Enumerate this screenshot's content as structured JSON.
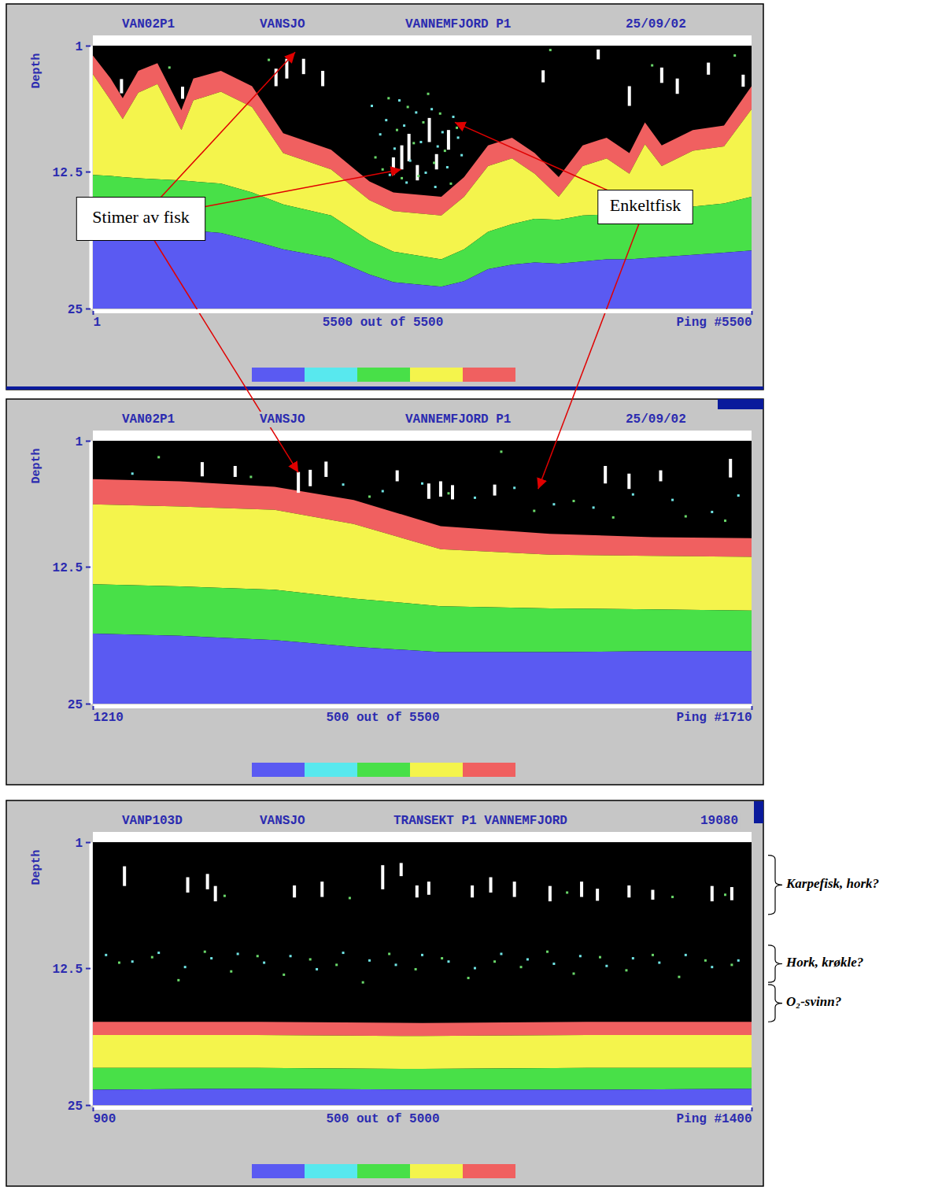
{
  "chart_data": [
    {
      "type": "area",
      "header": [
        "VAN02P1",
        "VANSJO",
        "VANNEMFJORD P1",
        "25/09/02"
      ],
      "ylabel": "Depth",
      "xlabel": "5500 out of 5500",
      "xlim": [
        1,
        5500
      ],
      "xticks": [
        1,
        {
          "value": 5500,
          "label": "Ping #5500"
        }
      ],
      "ylim": [
        1,
        25
      ],
      "yticks": [
        1,
        12.5,
        25
      ],
      "colors": [
        "#5a5af2",
        "#58e8ee",
        "#48e048",
        "#f4f44c",
        "#f06060"
      ],
      "x": [
        1,
        150,
        250,
        380,
        540,
        740,
        840,
        1070,
        1330,
        1590,
        1990,
        2310,
        2510,
        2910,
        3100,
        3300,
        3500,
        3690,
        3890,
        4090,
        4290,
        4480,
        4610,
        4750,
        5010,
        5270,
        5500
      ],
      "series": [
        {
          "type": "area",
          "color": "#f06060",
          "values": [
            1.9,
            4.0,
            5.8,
            3.3,
            2.6,
            6.9,
            4.0,
            3.3,
            4.7,
            9.0,
            10.5,
            13.4,
            14.4,
            14.8,
            13.0,
            10.1,
            9.4,
            10.8,
            13.0,
            10.1,
            9.4,
            10.8,
            8.0,
            10.1,
            8.7,
            8.3,
            4.7
          ]
        },
        {
          "type": "area",
          "color": "#f4f44c",
          "values": [
            3.6,
            6.0,
            7.7,
            5.3,
            4.5,
            8.7,
            6.0,
            5.2,
            6.6,
            10.8,
            12.3,
            15.1,
            16.1,
            16.5,
            14.8,
            12.0,
            11.3,
            12.7,
            14.8,
            12.0,
            11.3,
            12.7,
            10.0,
            12.0,
            10.6,
            10.2,
            6.8
          ]
        },
        {
          "type": "area",
          "color": "#48e048",
          "values": [
            12.8,
            12.9,
            13.0,
            13.1,
            13.2,
            13.3,
            13.4,
            13.6,
            14.4,
            15.5,
            16.5,
            18.8,
            19.8,
            20.5,
            19.6,
            18.0,
            17.3,
            16.8,
            16.9,
            16.5,
            16.4,
            16.5,
            16.3,
            16.0,
            15.7,
            15.4,
            14.8
          ]
        },
        {
          "type": "area",
          "color": "#5a5af2",
          "values": [
            17.3,
            17.4,
            17.5,
            17.6,
            17.7,
            17.8,
            17.9,
            18.1,
            18.8,
            19.6,
            20.4,
            21.9,
            22.6,
            23.0,
            22.5,
            21.4,
            21.0,
            20.8,
            20.9,
            20.7,
            20.5,
            20.5,
            20.4,
            20.3,
            20.1,
            19.9,
            19.7
          ]
        },
        {
          "type": "bar",
          "color": "#ffffff",
          "x": [
            240,
            750,
            1530,
            1620,
            1760,
            1920,
            2510,
            2580,
            2640,
            2710,
            2810,
            2870,
            2970,
            3760,
            4220,
            4480,
            4750,
            4880,
            5140,
            5430
          ],
          "values": [
            4.7,
            5.3,
            3.9,
            3.1,
            2.9,
            4.0,
            12.0,
            11.2,
            10.3,
            12.6,
            8.7,
            11.6,
            9.6,
            3.8,
            1.8,
            5.6,
            3.7,
            4.7,
            3.1,
            4.2
          ],
          "heights": [
            1.3,
            1.1,
            1.6,
            1.8,
            1.4,
            1.4,
            1.6,
            2.2,
            2.5,
            1.4,
            2.2,
            1.4,
            1.8,
            1.1,
            0.9,
            1.8,
            1.4,
            1.4,
            1.1,
            1.1
          ]
        },
        {
          "type": "scatter",
          "color": "#70e4e4",
          "x": [
            2330,
            2400,
            2450,
            2520,
            2560,
            2600,
            2650,
            2700,
            2740,
            2780,
            2830,
            2880,
            2920,
            2960,
            3010,
            3050,
            2480,
            2620,
            2860,
            3080
          ],
          "values": [
            6.5,
            9.1,
            7.8,
            10.4,
            6.0,
            8.3,
            11.5,
            7.1,
            9.8,
            12.6,
            6.8,
            10.2,
            8.9,
            12.1,
            7.5,
            9.4,
            12.8,
            13.5,
            13.9,
            11.0
          ]
        },
        {
          "type": "scatter",
          "color": "#6ad86a",
          "x": [
            2360,
            2420,
            2470,
            2540,
            2580,
            2630,
            2680,
            2720,
            2760,
            2800,
            2850,
            2900,
            2940,
            2990,
            3040,
            1470,
            3820,
            4670,
            5360,
            640
          ],
          "values": [
            11.2,
            12.3,
            5.8,
            8.7,
            13.1,
            6.6,
            9.9,
            12.9,
            8.0,
            5.4,
            11.7,
            7.2,
            10.6,
            13.6,
            8.5,
            2.3,
            1.4,
            2.8,
            1.9,
            3.0
          ]
        }
      ]
    },
    {
      "type": "area",
      "header": [
        "VAN02P1",
        "VANSJO",
        "VANNEMFJORD P1",
        "25/09/02"
      ],
      "ylabel": "Depth",
      "xlabel": "500 out of 5500",
      "xlim": [
        1210,
        1710
      ],
      "xticks": [
        1210,
        {
          "value": 1710,
          "label": "Ping #1710"
        }
      ],
      "ylim": [
        1,
        25
      ],
      "yticks": [
        1,
        12.5,
        25
      ],
      "colors": [
        "#5a5af2",
        "#58e8ee",
        "#48e048",
        "#f4f44c",
        "#f06060"
      ],
      "x": [
        1210,
        1276,
        1348,
        1408,
        1474,
        1557,
        1635,
        1710
      ],
      "series": [
        {
          "type": "area",
          "color": "#f06060",
          "values": [
            4.5,
            4.7,
            5.2,
            6.4,
            8.8,
            9.5,
            9.8,
            9.9
          ]
        },
        {
          "type": "area",
          "color": "#f4f44c",
          "values": [
            6.8,
            7.0,
            7.3,
            8.6,
            10.9,
            11.4,
            11.5,
            11.6
          ]
        },
        {
          "type": "area",
          "color": "#48e048",
          "values": [
            14.1,
            14.3,
            14.6,
            15.4,
            16.1,
            16.3,
            16.4,
            16.5
          ]
        },
        {
          "type": "area",
          "color": "#5a5af2",
          "values": [
            18.6,
            18.8,
            19.2,
            19.8,
            20.3,
            20.3,
            20.2,
            20.2
          ]
        },
        {
          "type": "bar",
          "color": "#ffffff",
          "x": [
            1293,
            1318,
            1366,
            1375,
            1387,
            1441,
            1465,
            1474,
            1483,
            1515,
            1599,
            1617,
            1641,
            1694
          ],
          "values": [
            3.6,
            3.8,
            4.8,
            4.4,
            3.6,
            4.2,
            5.6,
            5.4,
            5.7,
            5.5,
            4.1,
            4.7,
            4.2,
            3.5
          ],
          "heights": [
            1.3,
            1.0,
            1.9,
            1.5,
            1.4,
            1.0,
            1.4,
            1.4,
            1.3,
            1.0,
            1.6,
            1.4,
            1.0,
            1.7
          ]
        },
        {
          "type": "scatter",
          "color": "#70e4e4",
          "x": [
            1240,
            1400,
            1430,
            1460,
            1500,
            1530,
            1560,
            1590,
            1620,
            1650,
            1680,
            1700
          ],
          "values": [
            4.0,
            5.0,
            5.6,
            4.9,
            6.2,
            5.3,
            6.8,
            7.1,
            5.9,
            6.4,
            7.5,
            6.0
          ]
        },
        {
          "type": "scatter",
          "color": "#6ad86a",
          "x": [
            1260,
            1330,
            1420,
            1480,
            1520,
            1545,
            1575,
            1605,
            1660,
            1690
          ],
          "values": [
            2.5,
            4.3,
            6.1,
            5.8,
            2.0,
            7.4,
            6.5,
            8.0,
            7.9,
            8.3
          ]
        }
      ]
    },
    {
      "type": "area",
      "header": [
        "VANP103D",
        "VANSJO",
        "TRANSEKT P1 VANNEMFJORD",
        "19080"
      ],
      "ylabel": "Depth",
      "xlabel": "500 out of 5000",
      "xlim": [
        900,
        1400
      ],
      "xticks": [
        900,
        {
          "value": 1400,
          "label": "Ping #1400"
        }
      ],
      "ylim": [
        1,
        25
      ],
      "yticks": [
        1,
        12.5,
        25
      ],
      "colors": [
        "#5a5af2",
        "#58e8ee",
        "#48e048",
        "#f4f44c",
        "#f06060"
      ],
      "x": [
        900,
        1025,
        1150,
        1275,
        1400
      ],
      "series": [
        {
          "type": "area",
          "color": "#f06060",
          "values": [
            17.4,
            17.4,
            17.5,
            17.4,
            17.4
          ]
        },
        {
          "type": "area",
          "color": "#f4f44c",
          "values": [
            18.6,
            18.6,
            18.7,
            18.6,
            18.6
          ]
        },
        {
          "type": "area",
          "color": "#48e048",
          "values": [
            21.6,
            21.6,
            21.7,
            21.6,
            21.6
          ]
        },
        {
          "type": "area",
          "color": "#5a5af2",
          "values": [
            23.6,
            23.5,
            23.6,
            23.6,
            23.5
          ]
        },
        {
          "type": "bar",
          "color": "#ffffff",
          "x": [
            924,
            972,
            987,
            993,
            1053,
            1074,
            1120,
            1134,
            1146,
            1155,
            1188,
            1202,
            1220,
            1247,
            1271,
            1283,
            1307,
            1325,
            1370,
            1385
          ],
          "values": [
            4.1,
            4.9,
            4.6,
            5.7,
            5.5,
            5.3,
            4.2,
            3.5,
            5.5,
            5.2,
            5.5,
            4.9,
            5.3,
            5.7,
            5.3,
            5.8,
            5.5,
            5.8,
            5.7,
            5.7
          ],
          "heights": [
            1.8,
            1.4,
            1.4,
            1.4,
            1.1,
            1.4,
            2.2,
            1.2,
            1.1,
            1.2,
            1.1,
            1.4,
            1.4,
            1.4,
            1.4,
            1.1,
            1.1,
            0.9,
            1.4,
            1.2
          ]
        },
        {
          "type": "scatter",
          "color": "#70e4e4",
          "x": [
            910,
            930,
            950,
            970,
            990,
            1010,
            1030,
            1050,
            1070,
            1090,
            1110,
            1130,
            1150,
            1170,
            1190,
            1210,
            1230,
            1250,
            1270,
            1290,
            1310,
            1330,
            1350,
            1370,
            1390
          ],
          "values": [
            11.3,
            11.9,
            11.1,
            12.4,
            11.6,
            11.2,
            12.0,
            11.4,
            12.6,
            11.1,
            11.8,
            12.2,
            11.3,
            11.9,
            12.5,
            11.2,
            11.7,
            12.1,
            11.4,
            12.3,
            11.6,
            12.0,
            11.3,
            12.4,
            11.8
          ]
        },
        {
          "type": "scatter",
          "color": "#6ad86a",
          "x": [
            920,
            945,
            965,
            985,
            1005,
            1025,
            1045,
            1065,
            1085,
            1105,
            1125,
            1145,
            1165,
            1185,
            1205,
            1225,
            1245,
            1265,
            1285,
            1305,
            1325,
            1345,
            1365,
            1385,
            1000,
            1095,
            1260,
            1340,
            1380
          ],
          "values": [
            12.0,
            11.5,
            13.6,
            11.0,
            12.8,
            11.4,
            13.1,
            11.7,
            12.2,
            13.8,
            11.2,
            12.6,
            11.6,
            13.4,
            11.9,
            12.4,
            11.0,
            13.0,
            11.5,
            12.7,
            11.3,
            13.3,
            11.8,
            12.2,
            5.9,
            6.1,
            5.6,
            6.0,
            5.8
          ]
        }
      ],
      "annotations": [
        {
          "text": "Karpefisk, hork?",
          "range": [
            2.2,
            7.6
          ]
        },
        {
          "text": "Hork, krøkle?",
          "range": [
            10.4,
            13.8
          ]
        },
        {
          "text": "O₂-svinn?",
          "range": [
            14.0,
            17.4
          ]
        }
      ]
    }
  ],
  "annotations": [
    {
      "text": "Stimer av fisk",
      "points": [
        {
          "chart": 0,
          "x": 1690,
          "y": 1.6
        },
        {
          "chart": 0,
          "x": 2576,
          "y": 12.3
        },
        {
          "chart": 1,
          "x": 1366,
          "y": 3.9
        }
      ]
    },
    {
      "text": "Enkeltfisk",
      "points": [
        {
          "chart": 0,
          "x": 3023,
          "y": 8.0
        },
        {
          "chart": 1,
          "x": 1548,
          "y": 5.4
        }
      ]
    }
  ]
}
